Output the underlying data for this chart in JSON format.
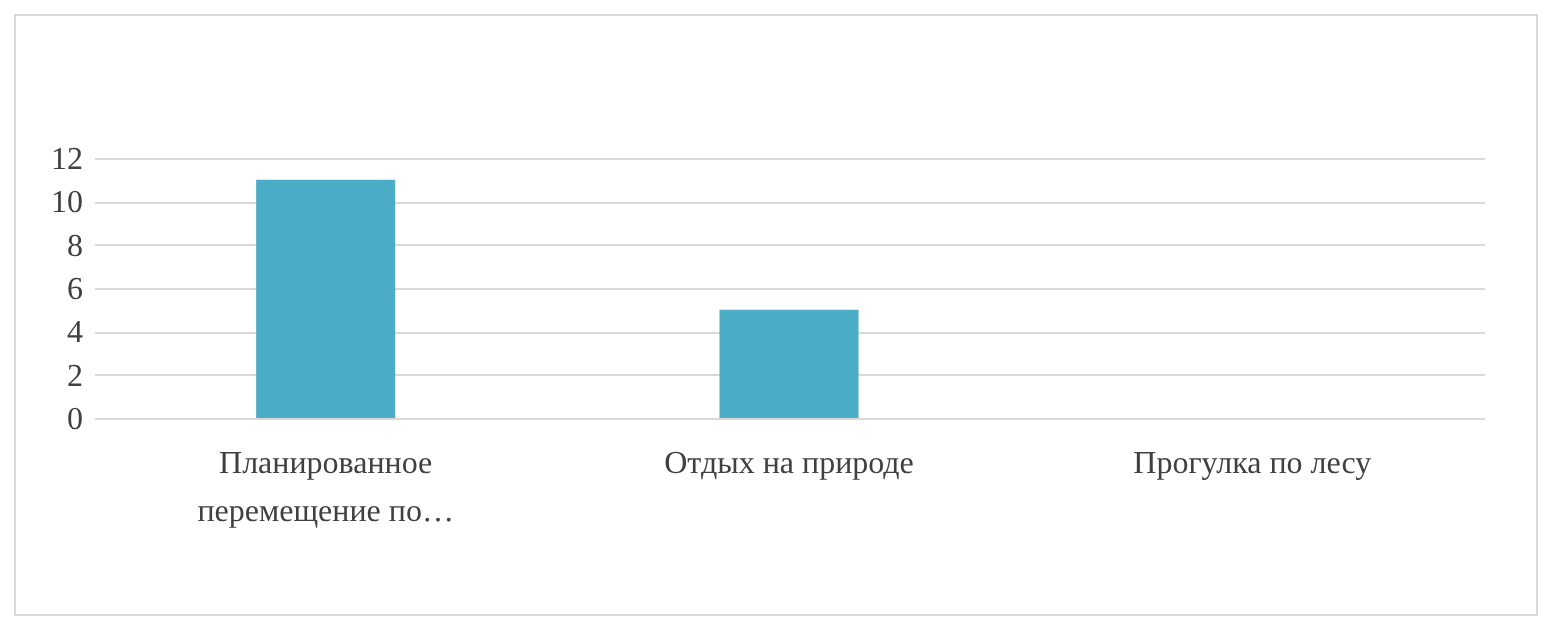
{
  "chart_data": {
    "type": "bar",
    "categories": [
      "Планированное перемещение по…",
      "Отдых на природе",
      "Прогулка по лесу"
    ],
    "values": [
      11,
      5,
      0
    ],
    "color": "#4bacc6",
    "ylim": [
      0,
      12
    ],
    "yticks": [
      0,
      2,
      4,
      6,
      8,
      10,
      12
    ],
    "grid": "y"
  }
}
